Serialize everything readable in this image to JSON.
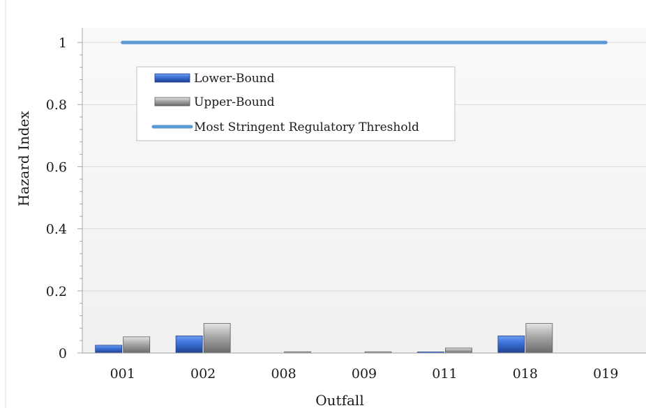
{
  "chart_data": {
    "type": "bar",
    "xlabel": "Outfall",
    "ylabel": "Hazard Index",
    "categories": [
      "001",
      "002",
      "008",
      "009",
      "011",
      "018",
      "019"
    ],
    "series": [
      {
        "name": "Lower-Bound",
        "values": [
          0.025,
          0.055,
          0.0,
          0.0,
          0.003,
          0.055,
          0.0
        ],
        "color": "#3a6fd4"
      },
      {
        "name": "Upper-Bound",
        "values": [
          0.052,
          0.095,
          0.004,
          0.004,
          0.016,
          0.095,
          0.0
        ],
        "color": "#a6a6a6"
      }
    ],
    "threshold": {
      "name": "Most Stringent Regulatory Threshold",
      "value": 1,
      "color": "#5b9bd5"
    },
    "ylim": [
      0,
      1
    ],
    "yticks": [
      "0",
      "0.2",
      "0.4",
      "0.6",
      "0.8",
      "1"
    ],
    "grid": true,
    "legend_position": "upper-left"
  }
}
